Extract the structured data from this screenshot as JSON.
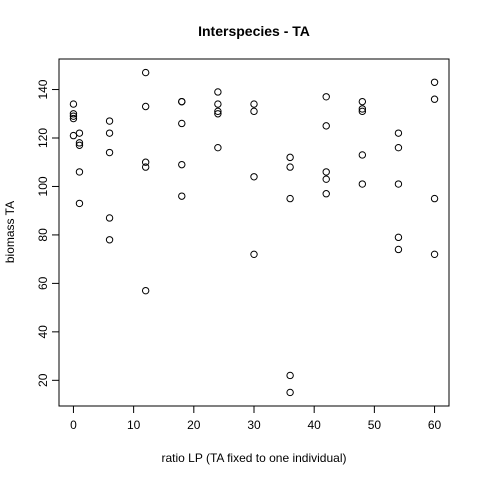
{
  "chart_data": {
    "type": "scatter",
    "title": "Interspecies - TA",
    "xlabel": "ratio LP (TA fixed to one individual)",
    "ylabel": "biomass TA",
    "xlim": [
      -2.4,
      62.4
    ],
    "ylim": [
      9.4,
      152.6
    ],
    "xticks": [
      0,
      10,
      20,
      30,
      40,
      50,
      60
    ],
    "yticks": [
      20,
      40,
      60,
      80,
      100,
      120,
      140
    ],
    "grid": false,
    "marker": "open-circle",
    "points": [
      {
        "x": 0,
        "y": 134
      },
      {
        "x": 0,
        "y": 130
      },
      {
        "x": 0,
        "y": 129
      },
      {
        "x": 0,
        "y": 128
      },
      {
        "x": 0,
        "y": 121
      },
      {
        "x": 1,
        "y": 122
      },
      {
        "x": 1,
        "y": 118
      },
      {
        "x": 1,
        "y": 117
      },
      {
        "x": 1,
        "y": 106
      },
      {
        "x": 1,
        "y": 93
      },
      {
        "x": 6,
        "y": 127
      },
      {
        "x": 6,
        "y": 122
      },
      {
        "x": 6,
        "y": 114
      },
      {
        "x": 6,
        "y": 87
      },
      {
        "x": 6,
        "y": 78
      },
      {
        "x": 12,
        "y": 147
      },
      {
        "x": 12,
        "y": 133
      },
      {
        "x": 12,
        "y": 110
      },
      {
        "x": 12,
        "y": 108
      },
      {
        "x": 12,
        "y": 57
      },
      {
        "x": 18,
        "y": 135
      },
      {
        "x": 18,
        "y": 135
      },
      {
        "x": 18,
        "y": 126
      },
      {
        "x": 18,
        "y": 109
      },
      {
        "x": 18,
        "y": 96
      },
      {
        "x": 24,
        "y": 139
      },
      {
        "x": 24,
        "y": 134
      },
      {
        "x": 24,
        "y": 131
      },
      {
        "x": 24,
        "y": 130
      },
      {
        "x": 24,
        "y": 116
      },
      {
        "x": 30,
        "y": 134
      },
      {
        "x": 30,
        "y": 131
      },
      {
        "x": 30,
        "y": 104
      },
      {
        "x": 30,
        "y": 72
      },
      {
        "x": 36,
        "y": 112
      },
      {
        "x": 36,
        "y": 108
      },
      {
        "x": 36,
        "y": 95
      },
      {
        "x": 36,
        "y": 22
      },
      {
        "x": 36,
        "y": 15
      },
      {
        "x": 42,
        "y": 137
      },
      {
        "x": 42,
        "y": 125
      },
      {
        "x": 42,
        "y": 106
      },
      {
        "x": 42,
        "y": 103
      },
      {
        "x": 42,
        "y": 97
      },
      {
        "x": 48,
        "y": 135
      },
      {
        "x": 48,
        "y": 132
      },
      {
        "x": 48,
        "y": 131
      },
      {
        "x": 48,
        "y": 113
      },
      {
        "x": 48,
        "y": 101
      },
      {
        "x": 54,
        "y": 122
      },
      {
        "x": 54,
        "y": 116
      },
      {
        "x": 54,
        "y": 101
      },
      {
        "x": 54,
        "y": 79
      },
      {
        "x": 54,
        "y": 74
      },
      {
        "x": 60,
        "y": 143
      },
      {
        "x": 60,
        "y": 136
      },
      {
        "x": 60,
        "y": 95
      },
      {
        "x": 60,
        "y": 72
      }
    ]
  }
}
